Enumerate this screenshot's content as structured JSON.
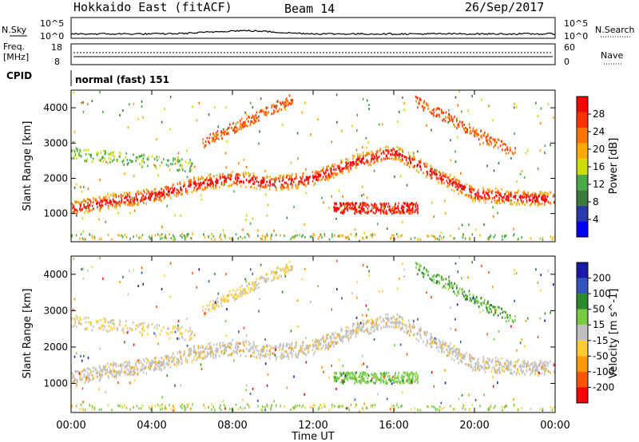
{
  "header": {
    "title": "Hokkaido East (fitACF)",
    "beam": "Beam 14",
    "date": "26/Sep/2017"
  },
  "top_panels": {
    "nsky_label": "N.Sky",
    "nsky_ticks": [
      "10^5",
      "10^0"
    ],
    "nsearch_label": "N.Search",
    "freq_label_line1": "Freq.",
    "freq_label_line2": "[MHz]",
    "freq_ticks": [
      "18",
      "8"
    ],
    "nave_ticks": [
      "60",
      "0"
    ],
    "nave_label": "Nave",
    "cpid_label": "CPID",
    "cpid_text": "normal (fast) 151"
  },
  "chart_data": [
    {
      "type": "heatmap",
      "name": "power",
      "ylabel": "Slant Range [km]",
      "xlabel": "Time UT",
      "x_ticks": [
        "00:00",
        "04:00",
        "08:00",
        "12:00",
        "16:00",
        "20:00",
        "00:00"
      ],
      "x_range_hours": [
        0,
        24
      ],
      "y_ticks": [
        1000,
        2000,
        3000,
        4000
      ],
      "ylim": [
        200,
        4500
      ],
      "colorbar": {
        "label": "Power [dB]",
        "ticks": [
          4,
          8,
          12,
          16,
          20,
          24,
          28
        ],
        "range": [
          0,
          32
        ],
        "colors": [
          "#0000ff",
          "#2a3aa8",
          "#3a7a3a",
          "#4aaa4a",
          "#ccdd00",
          "#ffaa00",
          "#ff7700",
          "#ff3300",
          "#ff0000"
        ]
      },
      "bands": [
        {
          "hour": 0,
          "range": 1150
        },
        {
          "hour": 2,
          "range": 1350
        },
        {
          "hour": 4,
          "range": 1500
        },
        {
          "hour": 6,
          "range": 1800
        },
        {
          "hour": 8,
          "range": 2000
        },
        {
          "hour": 10,
          "range": 1850
        },
        {
          "hour": 12,
          "range": 2000
        },
        {
          "hour": 14,
          "range": 2450
        },
        {
          "hour": 16,
          "range": 2750
        },
        {
          "hour": 18,
          "range": 2100
        },
        {
          "hour": 20,
          "range": 1550
        },
        {
          "hour": 22,
          "range": 1450
        },
        {
          "hour": 24,
          "range": 1400
        }
      ]
    },
    {
      "type": "heatmap",
      "name": "velocity",
      "ylabel": "Slant Range [km]",
      "xlabel": "Time UT",
      "x_ticks": [
        "00:00",
        "04:00",
        "08:00",
        "12:00",
        "16:00",
        "20:00",
        "00:00"
      ],
      "y_ticks": [
        1000,
        2000,
        3000,
        4000
      ],
      "ylim": [
        200,
        4500
      ],
      "colorbar": {
        "label": "Velocity [m s^-1]",
        "ticks": [
          200,
          100,
          50,
          15,
          -15,
          -50,
          -100,
          -200
        ],
        "colors": [
          "#1a1aaa",
          "#3355bb",
          "#2a8a2a",
          "#77cc44",
          "#c0c0c0",
          "#ffcc33",
          "#ff9900",
          "#ff5500",
          "#ff0000"
        ]
      }
    }
  ]
}
